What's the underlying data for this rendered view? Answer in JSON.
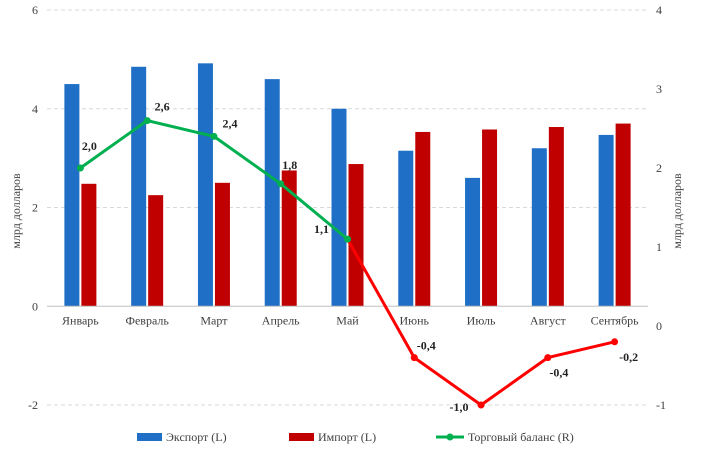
{
  "chart_data": {
    "type": "bar",
    "categories": [
      "Январь",
      "Февраль",
      "Март",
      "Апрель",
      "Май",
      "Июнь",
      "Июль",
      "Август",
      "Сентябрь"
    ],
    "series": [
      {
        "name": "Экспорт (L)",
        "type": "bar",
        "axis": "left",
        "color": "#1f6fc6",
        "values": [
          4.5,
          4.85,
          4.92,
          4.6,
          4.0,
          3.15,
          2.6,
          3.2,
          3.47
        ]
      },
      {
        "name": "Импорт (L)",
        "type": "bar",
        "axis": "left",
        "color": "#c00000",
        "values": [
          2.48,
          2.25,
          2.5,
          2.75,
          2.88,
          3.53,
          3.58,
          3.63,
          3.7
        ]
      },
      {
        "name": "Торговый баланс (R)",
        "type": "line",
        "axis": "right",
        "color_positive": "#00b050",
        "color_negative": "#ff0000",
        "values": [
          2.0,
          2.6,
          2.4,
          1.8,
          1.1,
          -0.4,
          -1.0,
          -0.4,
          -0.2
        ],
        "labels": [
          "2,0",
          "2,6",
          "2,4",
          "1,8",
          "1,1",
          "-0,4",
          "-1,0",
          "-0,4",
          "-0,2"
        ]
      }
    ],
    "y_left": {
      "label": "млрд долларов",
      "lim": [
        -2,
        6
      ],
      "ticks": [
        -2,
        0,
        2,
        4,
        6
      ],
      "tick_labels": [
        "-2",
        "0",
        "2",
        "4",
        "6"
      ]
    },
    "y_right": {
      "label": "млрд долларов",
      "lim": [
        -1,
        4
      ],
      "ticks": [
        -1,
        0,
        1,
        2,
        3,
        4
      ],
      "tick_labels": [
        "-1",
        "0",
        "1",
        "2",
        "3",
        "4"
      ]
    },
    "grid": "horizontal dashed",
    "legend_position": "bottom"
  }
}
